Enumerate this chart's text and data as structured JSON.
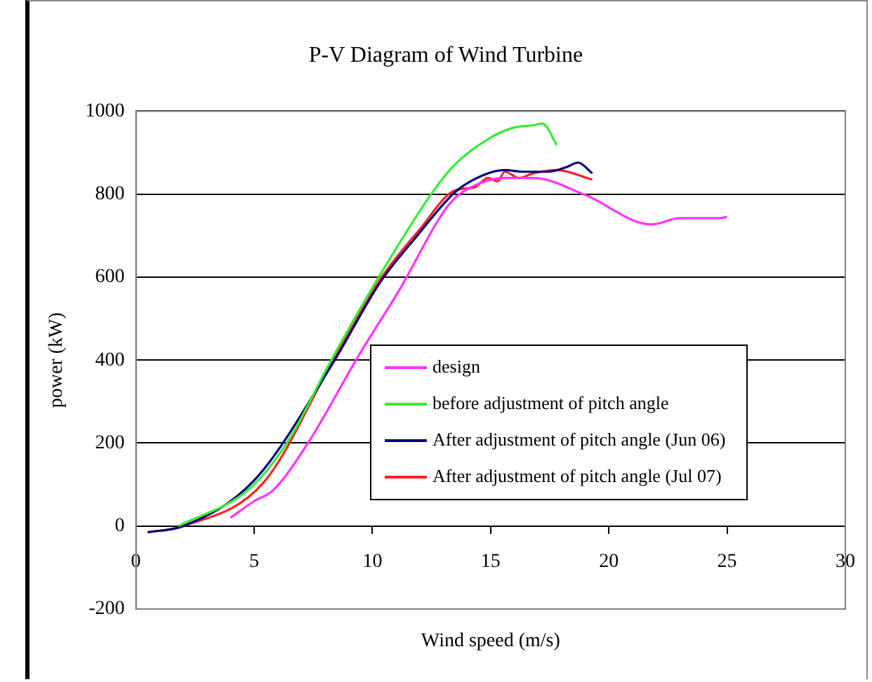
{
  "chart_data": {
    "type": "line",
    "title": "P-V Diagram of Wind Turbine",
    "xlabel": "Wind speed (m/s)",
    "ylabel": "power (kW)",
    "xlim": [
      0,
      30
    ],
    "xticks": [
      0,
      5,
      10,
      15,
      20,
      25,
      30
    ],
    "ylim": [
      -200,
      1000
    ],
    "yticks": [
      -200,
      0,
      200,
      400,
      600,
      800,
      1000
    ],
    "grid": "y",
    "legend": "center right",
    "marker": "none",
    "line_style": "solid",
    "series": [
      {
        "name": "design",
        "color": "#ff33ff",
        "x": [
          4,
          5,
          5.8,
          7.3,
          9.35,
          11.1,
          13.3,
          14.3,
          15.6,
          16.8,
          19,
          21.8,
          23,
          24.7,
          25
        ],
        "values": [
          20,
          60,
          86,
          202,
          404,
          565,
          779,
          820,
          839,
          839,
          798,
          727,
          742,
          742,
          745
        ]
      },
      {
        "name": "before adjustment of pitch angle",
        "color": "#33ee33",
        "x": [
          1.8,
          4.8,
          6.4,
          8.3,
          10.3,
          12.5,
          13.5,
          14.9,
          15.9,
          16.8,
          17.2,
          17.8
        ],
        "values": [
          0,
          90,
          202,
          404,
          603,
          801,
          872,
          933,
          959,
          966,
          970,
          918
        ]
      },
      {
        "name": "After adjustment of pitch angle (Jun 06)",
        "color": "#000080",
        "x": [
          0.5,
          2,
          5,
          8.3,
          10.3,
          11.9,
          13.5,
          14.7,
          15.6,
          16.4,
          17.4,
          18.2,
          18.7,
          19.3
        ],
        "values": [
          -15,
          0,
          110,
          390,
          585,
          700,
          805,
          846,
          858,
          854,
          854,
          865,
          876,
          850
        ]
      },
      {
        "name": "After adjustment of pitch angle (Jul 07)",
        "color": "#ff2020",
        "x": [
          0.5,
          2,
          5.4,
          8.3,
          10.3,
          12,
          13.5,
          14.3,
          14.9,
          15.3,
          15.6,
          16.2,
          16.8,
          17.8,
          19.3
        ],
        "values": [
          -15,
          0,
          105,
          395,
          592,
          715,
          809,
          816,
          839,
          831,
          854,
          839,
          850,
          858,
          835
        ]
      }
    ]
  }
}
